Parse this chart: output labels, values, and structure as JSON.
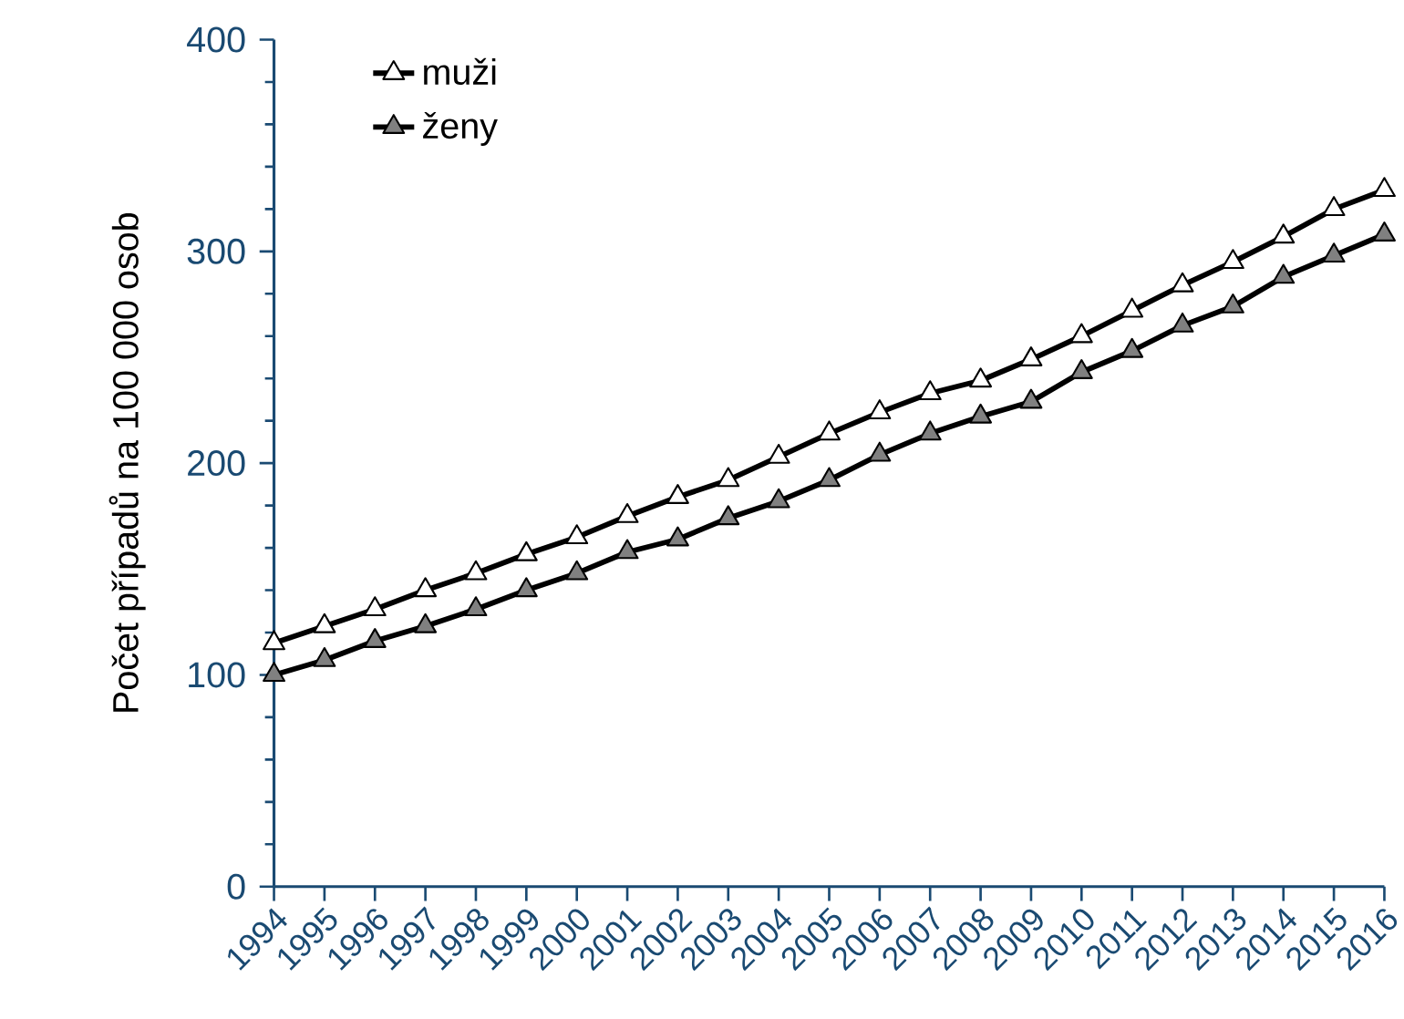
{
  "chart_data": {
    "type": "line",
    "ylabel": "Počet případů na 100 000 osob",
    "categories": [
      "1994",
      "1995",
      "1996",
      "1997",
      "1998",
      "1999",
      "2000",
      "2001",
      "2002",
      "2003",
      "2004",
      "2005",
      "2006",
      "2007",
      "2008",
      "2009",
      "2010",
      "2011",
      "2012",
      "2013",
      "2014",
      "2015",
      "2016"
    ],
    "series": [
      {
        "name": "muži",
        "color": "#ffffff",
        "values": [
          115,
          123,
          131,
          140,
          148,
          157,
          165,
          175,
          184,
          192,
          203,
          214,
          224,
          233,
          239,
          249,
          260,
          272,
          284,
          295,
          307,
          320,
          329
        ]
      },
      {
        "name": "ženy",
        "color": "#808080",
        "values": [
          100,
          107,
          116,
          123,
          131,
          140,
          148,
          158,
          164,
          174,
          182,
          192,
          204,
          214,
          222,
          229,
          243,
          253,
          265,
          274,
          288,
          298,
          308
        ]
      }
    ],
    "ylim": [
      0,
      400
    ],
    "yticks": [
      0,
      100,
      200,
      300,
      400
    ],
    "grid": false,
    "legend": "top left",
    "marker": "triangle",
    "line_style": "solid"
  }
}
